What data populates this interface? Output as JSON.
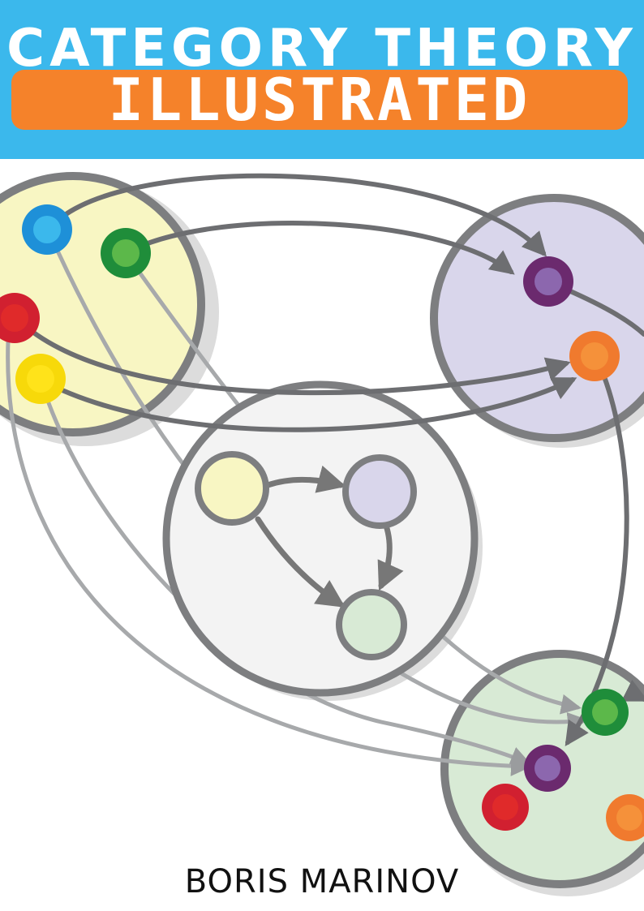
{
  "cover": {
    "title_line_1": "CATEGORY THEORY",
    "title_line_2": "ILLUSTRATED",
    "author": "BORIS MARINOV"
  },
  "colors": {
    "header_blue": "#3bb8ec",
    "banner_orange": "#f5822a",
    "yellow_set": "#f8f6c3",
    "purple_set": "#d9d6eb",
    "green_set": "#d8ead5",
    "center_set": "#f3f3f3",
    "object_blue": "#1e90d8",
    "object_green": "#1f8d3a",
    "object_red": "#d12030",
    "object_yellow": "#f7d90a",
    "object_purple": "#6b2a6e",
    "object_orange": "#f07a2e"
  },
  "icons": [
    "arrow-icon"
  ]
}
